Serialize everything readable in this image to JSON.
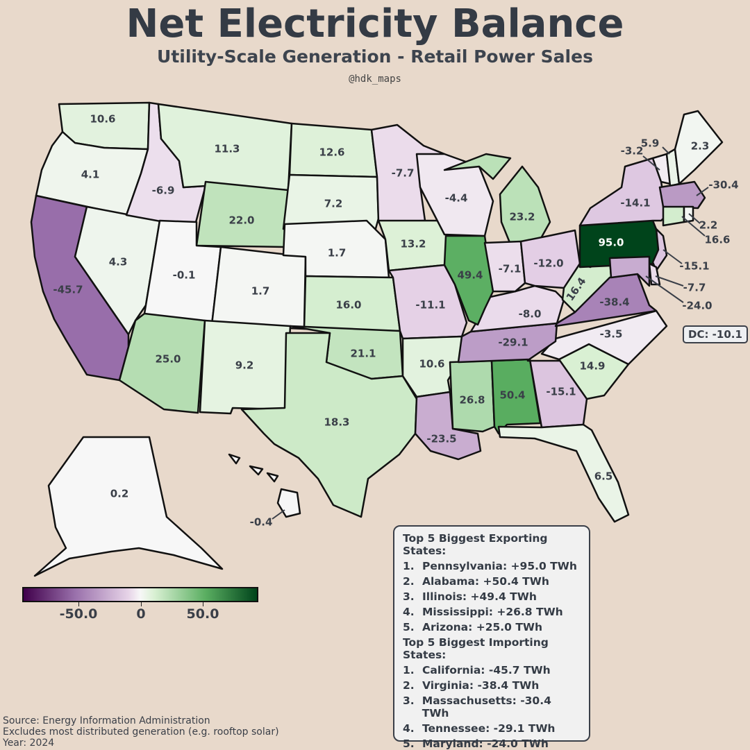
{
  "header": {
    "title": "Net Electricity Balance",
    "subtitle": "Utility-Scale Generation - Retail Power Sales",
    "handle": "@hdk_maps"
  },
  "colors": {
    "background": "#e8d9cb",
    "strong_import": "#40004b",
    "mid_import": "#c794d0",
    "neutral": "#f1f1f1",
    "mid_export": "#67ab6a",
    "strong_export": "#00441b"
  },
  "states": {
    "WA": "10.6",
    "OR": "4.1",
    "CA": "-45.7",
    "NV": "4.3",
    "ID": "-6.9",
    "MT": "11.3",
    "WY": "22.0",
    "UT": "-0.1",
    "AZ": "25.0",
    "CO": "1.7",
    "NM": "9.2",
    "ND": "12.6",
    "SD": "7.2",
    "NE": "1.7",
    "KS": "16.0",
    "OK": "21.1",
    "TX": "18.3",
    "MN": "-7.7",
    "IA": "13.2",
    "MO": "-11.1",
    "AR": "10.6",
    "LA": "-23.5",
    "WI": "-4.4",
    "IL": "49.4",
    "MI": "23.2",
    "IN": "-7.1",
    "OH": "-12.0",
    "KY": "-8.0",
    "TN": "-29.1",
    "MS": "26.8",
    "AL": "50.4",
    "GA": "-15.1",
    "FL": "6.5",
    "SC": "14.9",
    "NC": "-3.5",
    "VA": "-38.4",
    "WV": "16.4",
    "PA": "95.0",
    "NY": "-14.1",
    "VT": "-3.2",
    "NH": "5.9",
    "ME": "2.3",
    "MA": "-30.4",
    "RI": "2.2",
    "CT": "16.6",
    "NJ": "-15.1",
    "DE": "-7.7",
    "MD": "-24.0",
    "AK": "0.2",
    "HI": "-0.4"
  },
  "dc_label": "DC: -10.1",
  "colorbar": {
    "ticks": [
      "-50.0",
      "0",
      "50.0"
    ]
  },
  "rankings": {
    "export_title": "Top 5 Biggest Exporting States:",
    "exporters": [
      {
        "rank": "1.",
        "text": "Pennsylvania: +95.0 TWh"
      },
      {
        "rank": "2.",
        "text": "Alabama: +50.4 TWh"
      },
      {
        "rank": "3.",
        "text": "Illinois: +49.4 TWh"
      },
      {
        "rank": "4.",
        "text": "Mississippi: +26.8 TWh"
      },
      {
        "rank": "5.",
        "text": "Arizona: +25.0 TWh"
      }
    ],
    "import_title": "Top 5 Biggest Importing States:",
    "importers": [
      {
        "rank": "1.",
        "text": "California: -45.7 TWh"
      },
      {
        "rank": "2.",
        "text": "Virginia: -38.4 TWh"
      },
      {
        "rank": "3.",
        "text": "Massachusetts: -30.4 TWh"
      },
      {
        "rank": "4.",
        "text": "Tennessee: -29.1 TWh"
      },
      {
        "rank": "5.",
        "text": "Maryland: -24.0 TWh"
      }
    ]
  },
  "footer": {
    "source": "Source: Energy Information Administration",
    "note": "Excludes most distributed generation (e.g. rooftop solar)",
    "year": "Year: 2024"
  }
}
